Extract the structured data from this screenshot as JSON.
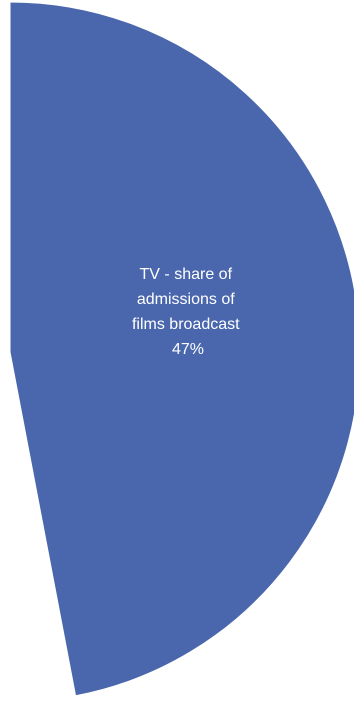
{
  "chart_data": {
    "type": "pie",
    "title": "",
    "slices": [
      {
        "label": "TV - share of admissions of films broadcast",
        "label_lines": [
          "TV - share of",
          "admissions of",
          "films broadcast",
          "47%"
        ],
        "value": 47,
        "color": "#4a67ad"
      }
    ],
    "legend": "none"
  }
}
